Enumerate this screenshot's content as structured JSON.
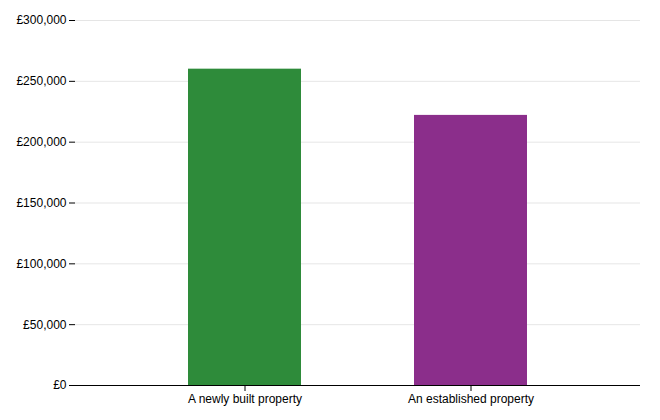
{
  "chart_data": {
    "type": "bar",
    "categories": [
      "A newly built property",
      "An established property"
    ],
    "values": [
      260000,
      222000
    ],
    "colors": [
      "#2e8b3a",
      "#8b2e8b"
    ],
    "ylim": [
      0,
      300000
    ],
    "yticks": [
      {
        "value": 0,
        "label": "£0"
      },
      {
        "value": 50000,
        "label": "£50,000"
      },
      {
        "value": 100000,
        "label": "£100,000"
      },
      {
        "value": 150000,
        "label": "£150,000"
      },
      {
        "value": 200000,
        "label": "£200,000"
      },
      {
        "value": 250000,
        "label": "£250,000"
      },
      {
        "value": 300000,
        "label": "£300,000"
      }
    ],
    "grid": true
  }
}
